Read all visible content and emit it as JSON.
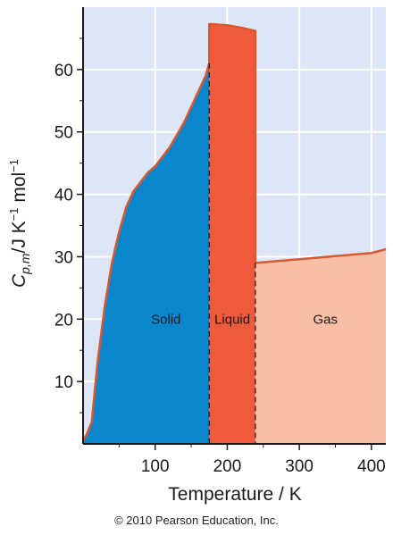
{
  "chart_data": {
    "type": "area",
    "xlabel": "Temperature / K",
    "ylabel": {
      "symbol": "C",
      "subscript": "p,m",
      "unit_prefix": "/J K",
      "exp1": "−1",
      "unit_mid": " mol",
      "exp2": "−1"
    },
    "xlim": [
      0,
      420
    ],
    "ylim": [
      0,
      70
    ],
    "xticks": [
      100,
      200,
      300,
      400
    ],
    "yticks": [
      10,
      20,
      30,
      40,
      50,
      60
    ],
    "grid": true,
    "colors": {
      "background": "#dde6f7",
      "grid": "#ffffff",
      "solid": "#0a86cc",
      "liquid": "#ef5a3d",
      "gas": "#f8bfa6",
      "curve": "#d9582e",
      "boundary": "#1a1a1a"
    },
    "transitions": [
      175,
      239
    ],
    "phases": [
      {
        "label": "Solid",
        "x": [
          0,
          5,
          12,
          20,
          30,
          40,
          50,
          60,
          70,
          80,
          90,
          100,
          110,
          120,
          130,
          140,
          150,
          160,
          170,
          175
        ],
        "y": [
          0.5,
          1.5,
          3.5,
          13,
          22,
          29,
          34,
          38,
          40.5,
          42,
          43.5,
          44.5,
          46,
          47.5,
          49.5,
          51.5,
          54,
          56.5,
          59,
          61
        ]
      },
      {
        "label": "Liquid",
        "x": [
          175,
          200,
          220,
          239
        ],
        "y": [
          67.3,
          67.1,
          66.7,
          66.2
        ]
      },
      {
        "label": "Gas",
        "x": [
          239,
          300,
          350,
          400,
          420
        ],
        "y": [
          29,
          29.6,
          30.1,
          30.6,
          31.2
        ]
      }
    ]
  },
  "footer": {
    "copyright": "© 2010 Pearson Education, Inc."
  }
}
